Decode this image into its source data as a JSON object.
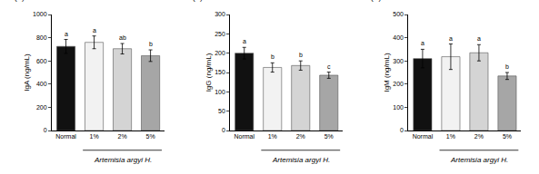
{
  "chart_data": [
    {
      "type": "bar",
      "title": "(A)",
      "ylabel": "IgA (ng/mL)",
      "categories": [
        "Normal",
        "1%",
        "2%",
        "5%"
      ],
      "values": [
        725,
        760,
        705,
        645
      ],
      "errors": [
        60,
        55,
        45,
        50
      ],
      "annotations": [
        "a",
        "a",
        "ab",
        "b"
      ],
      "group_label": "Artemisia argyi H.",
      "colors": [
        "#111111",
        "#f2f2f2",
        "#d4d4d4",
        "#a6a6a6"
      ],
      "ylim": [
        0,
        1000
      ],
      "yticks": [
        0,
        200,
        400,
        600,
        800,
        1000
      ],
      "grid": false
    },
    {
      "type": "bar",
      "title": "(B)",
      "ylabel": "IgG (ng/mL)",
      "categories": [
        "Normal",
        "1%",
        "2%",
        "5%"
      ],
      "values": [
        200,
        163,
        168,
        143
      ],
      "errors": [
        15,
        12,
        12,
        8
      ],
      "annotations": [
        "a",
        "b",
        "b",
        "c"
      ],
      "group_label": "Artemisia argyi H.",
      "colors": [
        "#111111",
        "#f2f2f2",
        "#d4d4d4",
        "#a6a6a6"
      ],
      "ylim": [
        0,
        300
      ],
      "yticks": [
        0,
        50,
        100,
        150,
        200,
        250,
        300
      ],
      "grid": false
    },
    {
      "type": "bar",
      "title": "(C)",
      "ylabel": "IgM (ng/mL)",
      "categories": [
        "Normal",
        "1%",
        "2%",
        "5%"
      ],
      "values": [
        310,
        318,
        335,
        235
      ],
      "errors": [
        40,
        55,
        35,
        15
      ],
      "annotations": [
        "a",
        "a",
        "a",
        "b"
      ],
      "group_label": "Artemisia argyi H.",
      "colors": [
        "#111111",
        "#f2f2f2",
        "#d4d4d4",
        "#a6a6a6"
      ],
      "ylim": [
        0,
        500
      ],
      "yticks": [
        0,
        100,
        200,
        300,
        400,
        500
      ],
      "grid": false
    }
  ]
}
